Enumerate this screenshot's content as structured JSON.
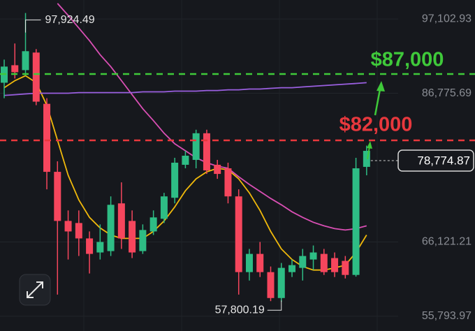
{
  "chart_data": {
    "type": "candlestick",
    "ylim": [
      53750,
      99730
    ],
    "yticks": [
      {
        "value": 97102.93,
        "label": "97,102.93"
      },
      {
        "value": 86775.69,
        "label": "86,775.69"
      },
      {
        "value": 66121.21,
        "label": "66,121.21"
      },
      {
        "value": 55793.97,
        "label": "55,793.97"
      }
    ],
    "grid": true,
    "up_color": "#2ebd85",
    "down_color": "#f6465d",
    "open": [
      88240,
      90670,
      89990,
      92430,
      85310,
      75860,
      69040,
      68750,
      66610,
      64660,
      64850,
      71480,
      69040,
      64850,
      67580,
      69340,
      72260,
      76840,
      77520,
      81220,
      76840,
      76350,
      72450,
      61930,
      64460,
      61930,
      58330,
      61930,
      62520,
      63680,
      64460,
      63880,
      63490,
      61540,
      76550
    ],
    "high": [
      91450,
      93690,
      97924.49,
      92910,
      86090,
      77320,
      70500,
      70500,
      67580,
      68560,
      72450,
      74400,
      70500,
      68560,
      70500,
      72940,
      77810,
      78790,
      81710,
      81710,
      77520,
      77130,
      73430,
      65150,
      66120,
      62710,
      63200,
      63680,
      65150,
      65630,
      65150,
      64660,
      64170,
      77810,
      79500
    ],
    "low": [
      86090,
      88820,
      89210,
      85120,
      73430,
      58810,
      63680,
      64170,
      61740,
      63680,
      64170,
      65150,
      63880,
      64460,
      67090,
      68750,
      71480,
      76350,
      76350,
      75570,
      74890,
      71480,
      58810,
      60760,
      61250,
      57900,
      57800.19,
      61250,
      60760,
      62220,
      61540,
      61250,
      61050,
      61300,
      75380
    ],
    "close": [
      90480,
      89700,
      92620,
      85610,
      75860,
      69040,
      67580,
      66610,
      64460,
      66120,
      71280,
      66610,
      64660,
      67780,
      69530,
      72450,
      77130,
      78100,
      81220,
      76060,
      75570,
      72450,
      61930,
      64460,
      61930,
      58330,
      62520,
      62900,
      64170,
      64660,
      61930,
      61930,
      61540,
      76350,
      78774.87
    ],
    "series": [
      {
        "color": "#f0b90b",
        "values": [
          87550,
          88530,
          89210,
          88240,
          85120,
          80250,
          75380,
          71970,
          69530,
          68070,
          67090,
          66610,
          66610,
          66610,
          67580,
          69040,
          70990,
          73230,
          74890,
          75860,
          76350,
          76150,
          74890,
          72940,
          70500,
          67580,
          65150,
          63680,
          62710,
          62220,
          62220,
          62520,
          62900,
          64660,
          67090
        ]
      },
      {
        "color": "#d94fb4",
        "values": [
          null,
          null,
          null,
          null,
          null,
          99250,
          97590,
          95840,
          94080,
          92130,
          90480,
          88530,
          86580,
          84630,
          82980,
          81220,
          79760,
          78790,
          77810,
          77130,
          76640,
          76350,
          75180,
          74110,
          73140,
          72160,
          71280,
          70310,
          69530,
          68850,
          68360,
          67970,
          67780,
          67970,
          68360
        ]
      },
      {
        "color": "#9a5fe0",
        "values": [
          86480,
          86580,
          86680,
          86780,
          86780,
          86780,
          86780,
          86870,
          86870,
          86870,
          86870,
          86870,
          86870,
          86970,
          86970,
          86970,
          87070,
          87070,
          87070,
          87160,
          87160,
          87260,
          87260,
          87360,
          87360,
          87460,
          87550,
          87550,
          87650,
          87750,
          87850,
          87940,
          88040,
          88140,
          88240
        ]
      }
    ],
    "high_label": "97,924.49",
    "low_label": "57,800.19",
    "last_price_label": "78,774.87",
    "annotations": [
      "$87,000",
      "$82,000"
    ]
  }
}
